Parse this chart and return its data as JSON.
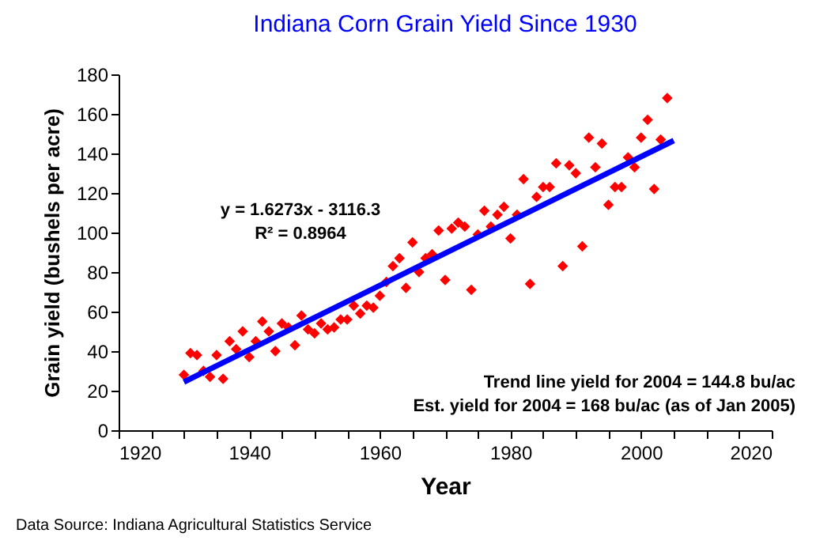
{
  "chart_data": {
    "type": "scatter",
    "title": "Indiana Corn Grain Yield Since 1930",
    "xlabel": "Year",
    "ylabel": "Grain yield (bushels per acre)",
    "annotations": [
      "y = 1.6273x - 3116.3",
      "R² = 0.8964",
      "Trend line yield for 2004 = 144.8 bu/ac",
      "Est. yield for 2004 = 168 bu/ac (as of Jan 2005)",
      "Data Source: Indiana Agricultural Statistics Service"
    ],
    "xlim": [
      1920,
      2020
    ],
    "ylim": [
      0,
      180
    ],
    "xticks": [
      1920,
      {
        "value": 1925,
        "label": null
      },
      {
        "value": 1930,
        "label": null
      },
      {
        "value": 1935,
        "label": null
      },
      1940,
      {
        "value": 1945,
        "label": null
      },
      {
        "value": 1950,
        "label": null
      },
      {
        "value": 1955,
        "label": null
      },
      1960,
      {
        "value": 1965,
        "label": null
      },
      {
        "value": 1970,
        "label": null
      },
      {
        "value": 1975,
        "label": null
      },
      1980,
      {
        "value": 1985,
        "label": null
      },
      {
        "value": 1990,
        "label": null
      },
      {
        "value": 1995,
        "label": null
      },
      2000,
      {
        "value": 2005,
        "label": null
      },
      {
        "value": 2010,
        "label": null
      },
      {
        "value": 2015,
        "label": null
      },
      2020
    ],
    "yticks": [
      0,
      20,
      40,
      60,
      80,
      100,
      120,
      140,
      160,
      180
    ],
    "grid": false,
    "series": [
      {
        "color": "#ff0000",
        "marker": "diamond",
        "x": [
          1930,
          1931,
          1932,
          1933,
          1934,
          1935,
          1936,
          1937,
          1938,
          1939,
          1940,
          1941,
          1942,
          1943,
          1944,
          1945,
          1946,
          1947,
          1948,
          1949,
          1950,
          1951,
          1952,
          1953,
          1954,
          1955,
          1956,
          1957,
          1958,
          1959,
          1960,
          1961,
          1962,
          1963,
          1964,
          1965,
          1966,
          1967,
          1968,
          1969,
          1970,
          1971,
          1972,
          1973,
          1974,
          1975,
          1976,
          1977,
          1978,
          1979,
          1980,
          1981,
          1982,
          1983,
          1984,
          1985,
          1986,
          1987,
          1988,
          1989,
          1990,
          1991,
          1992,
          1993,
          1994,
          1995,
          1996,
          1997,
          1998,
          1999,
          2000,
          2001,
          2002,
          2003,
          2004
        ],
        "values": [
          28,
          39,
          38,
          30,
          27,
          38,
          26,
          45,
          41,
          50,
          37,
          45,
          55,
          50,
          40,
          54,
          52,
          43,
          58,
          51,
          49,
          54,
          51,
          52,
          56,
          56,
          63,
          59,
          63,
          62,
          68,
          75,
          83,
          87,
          72,
          95,
          80,
          87,
          89,
          101,
          76,
          102,
          105,
          103,
          71,
          99,
          111,
          103,
          109,
          113,
          97,
          109,
          127,
          74,
          118,
          123,
          123,
          135,
          83,
          134,
          130,
          93,
          148,
          133,
          145,
          114,
          123,
          123,
          138,
          133,
          148,
          157,
          122,
          147,
          168
        ]
      },
      {
        "type": "line",
        "color": "#0000ff",
        "x": [
          1930,
          2005
        ],
        "values": [
          24.4,
          146.5
        ]
      }
    ]
  }
}
